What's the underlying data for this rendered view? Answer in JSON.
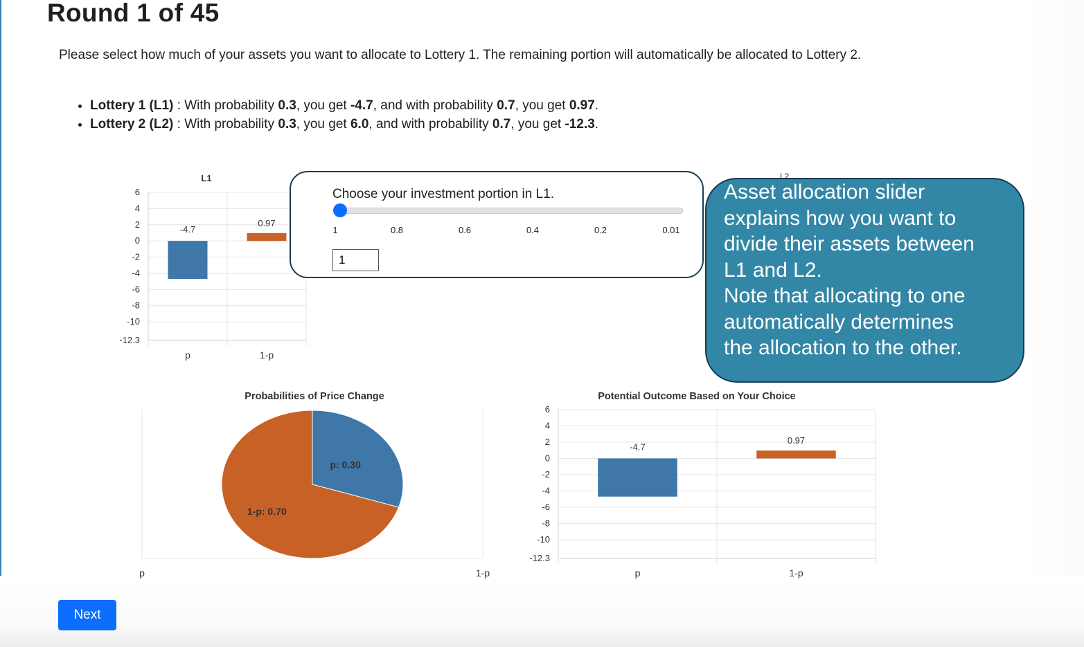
{
  "page": {
    "title": "Round 1 of 45",
    "instructions": "Please select how much of your assets you want to allocate to Lottery 1. The remaining portion will automatically be allocated to Lottery 2."
  },
  "lotteries": [
    {
      "name": "Lottery 1 (L1)",
      "sep": " : ",
      "t1": "With probability ",
      "p": "0.3",
      "t2": ", you get ",
      "a": "-4.7",
      "t3": ", and with probability ",
      "q": "0.7",
      "t4": ", you get ",
      "b": "0.97",
      "t5": "."
    },
    {
      "name": "Lottery 2 (L2)",
      "sep": " : ",
      "t1": "With probability ",
      "p": "0.3",
      "t2": ", you get ",
      "a": "6.0",
      "t3": ", and with probability ",
      "q": "0.7",
      "t4": ", you get ",
      "b": "-12.3",
      "t5": "."
    }
  ],
  "slider": {
    "label": "Choose your investment portion in L1.",
    "ticks": [
      "1",
      "0.8",
      "0.6",
      "0.4",
      "0.2",
      "0.01"
    ],
    "value": 1,
    "input_value": "1"
  },
  "callout": {
    "text": "Asset allocation slider\nexplains how you want to\ndivide their assets between\nL1 and L2.\nNote that allocating to one\nautomatically determines\nthe allocation to the other.",
    "peek_text": "L2",
    "background_color": "#3286a6",
    "border_color": "#173a57"
  },
  "next_button": {
    "label": "Next",
    "color": "#0d6efd"
  },
  "colors": {
    "p_series": "#3e77a8",
    "one_minus_p_series": "#c86126"
  },
  "chart_data": [
    {
      "type": "bar",
      "title": "L1",
      "categories": [
        "p",
        "1-p"
      ],
      "values": [
        -4.7,
        0.97
      ],
      "data_labels": [
        "-4.7",
        "0.97"
      ],
      "yticks": [
        6,
        4,
        2,
        0,
        -2,
        -4,
        -6,
        -8,
        -10,
        -12.3
      ],
      "ylim": [
        -12.3,
        6
      ],
      "grid": true
    },
    {
      "type": "pie",
      "title": "Probabilities of Price Change",
      "slices": [
        {
          "label": "p: 0.30",
          "value": 0.3
        },
        {
          "label": "1-p: 0.70",
          "value": 0.7
        }
      ],
      "x_tick_labels": [
        "p",
        "1-p"
      ]
    },
    {
      "type": "bar",
      "title": "Potential Outcome Based on Your Choice",
      "categories": [
        "p",
        "1-p"
      ],
      "values": [
        -4.7,
        0.97
      ],
      "data_labels": [
        "-4.7",
        "0.97"
      ],
      "yticks": [
        6,
        4,
        2,
        0,
        -2,
        -4,
        -6,
        -8,
        -10,
        -12.3
      ],
      "ylim": [
        -12.3,
        6
      ],
      "grid": true
    }
  ]
}
